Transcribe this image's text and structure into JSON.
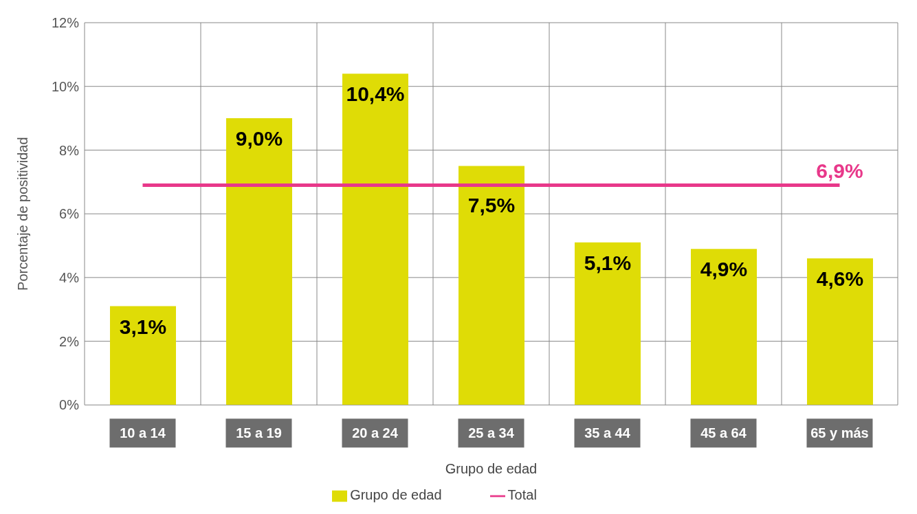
{
  "chart_data": {
    "type": "bar",
    "xlabel": "Grupo de edad",
    "ylabel": "Porcentaje de positividad",
    "categories": [
      "10 a 14",
      "15 a 19",
      "20 a 24",
      "25 a 34",
      "35 a 44",
      "45 a 64",
      "65 y más"
    ],
    "series": [
      {
        "name": "Grupo de edad",
        "color": "#dfdc06",
        "values": [
          3.1,
          9.0,
          10.4,
          7.5,
          5.1,
          4.9,
          4.6
        ],
        "value_labels": [
          "3,1%",
          "9,0%",
          "10,4%",
          "7,5%",
          "5,1%",
          "4,9%",
          "4,6%"
        ]
      },
      {
        "name": "Total",
        "type": "line",
        "color": "#e8388a",
        "values": [
          6.9,
          6.9,
          6.9,
          6.9,
          6.9,
          6.9,
          6.9
        ],
        "value_labels": [
          null,
          null,
          null,
          null,
          null,
          null,
          "6,9%"
        ]
      }
    ],
    "ylim": [
      0,
      12
    ],
    "yticks": [
      {
        "value": 0,
        "label": "0%"
      },
      {
        "value": 2,
        "label": "2%"
      },
      {
        "value": 4,
        "label": "4%"
      },
      {
        "value": 6,
        "label": "6%"
      },
      {
        "value": 8,
        "label": "8%"
      },
      {
        "value": 10,
        "label": "10%"
      },
      {
        "value": 12,
        "label": "12%"
      }
    ],
    "grid": true,
    "legend": "bottom",
    "marker": "none"
  }
}
